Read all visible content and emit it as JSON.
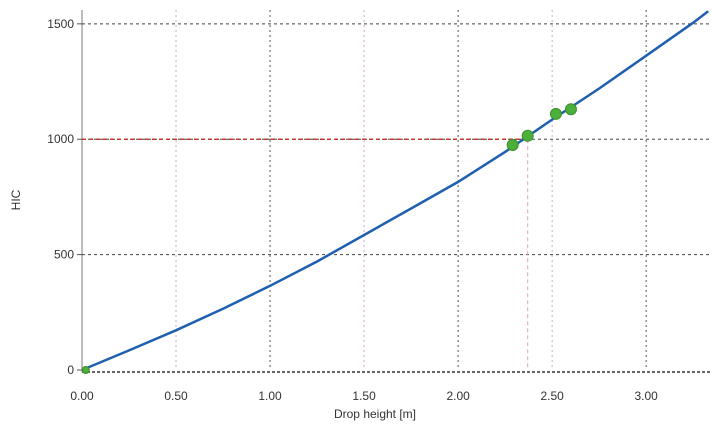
{
  "chart_data": {
    "type": "line",
    "xlabel": "Drop height [m]",
    "ylabel": "HIC",
    "xlim": [
      0,
      3.35
    ],
    "ylim": [
      0,
      1560
    ],
    "grid": true,
    "x_ticks": [
      0,
      0.5,
      1.0,
      1.5,
      2.0,
      2.5,
      3.0
    ],
    "x_tick_labels": [
      "0.00",
      "0.50",
      "1.00",
      "1.50",
      "2.00",
      "2.50",
      "3.00"
    ],
    "y_ticks": [
      0,
      500,
      1000,
      1500
    ],
    "y_tick_labels": [
      "0",
      "500",
      "1000",
      "1500"
    ],
    "series": [
      {
        "kind": "line",
        "color": "#1f5fb0",
        "x": [
          0,
          0.25,
          0.5,
          0.75,
          1.0,
          1.25,
          1.5,
          1.75,
          2.0,
          2.25,
          2.5,
          2.75,
          3.0,
          3.25,
          3.33
        ],
        "y": [
          0,
          85,
          172,
          265,
          365,
          470,
          585,
          700,
          815,
          945,
          1085,
          1220,
          1362,
          1505,
          1555
        ]
      },
      {
        "kind": "scatter",
        "color": "#4caf3a",
        "x": [
          0.02,
          2.29,
          2.37,
          2.52,
          2.6
        ],
        "y": [
          0,
          975,
          1015,
          1110,
          1130
        ]
      }
    ],
    "reference": {
      "y": 1000,
      "x": 2.37,
      "color": "#c0392b"
    }
  }
}
